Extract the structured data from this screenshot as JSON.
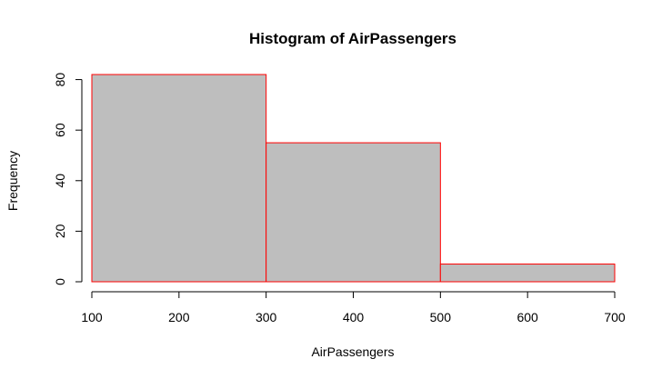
{
  "chart_data": {
    "type": "histogram",
    "title": "Histogram of AirPassengers",
    "xlabel": "AirPassengers",
    "ylabel": "Frequency",
    "bins": [
      {
        "from": 100,
        "to": 300,
        "count": 82
      },
      {
        "from": 300,
        "to": 500,
        "count": 55
      },
      {
        "from": 500,
        "to": 700,
        "count": 7
      }
    ],
    "x_ticks": [
      100,
      200,
      300,
      400,
      500,
      600,
      700
    ],
    "y_ticks": [
      0,
      20,
      40,
      60,
      80
    ],
    "xlim": [
      100,
      700
    ],
    "ylim": [
      0,
      82
    ],
    "bar_fill": "#bebebe",
    "bar_border": "#ff0000",
    "grid": false
  }
}
